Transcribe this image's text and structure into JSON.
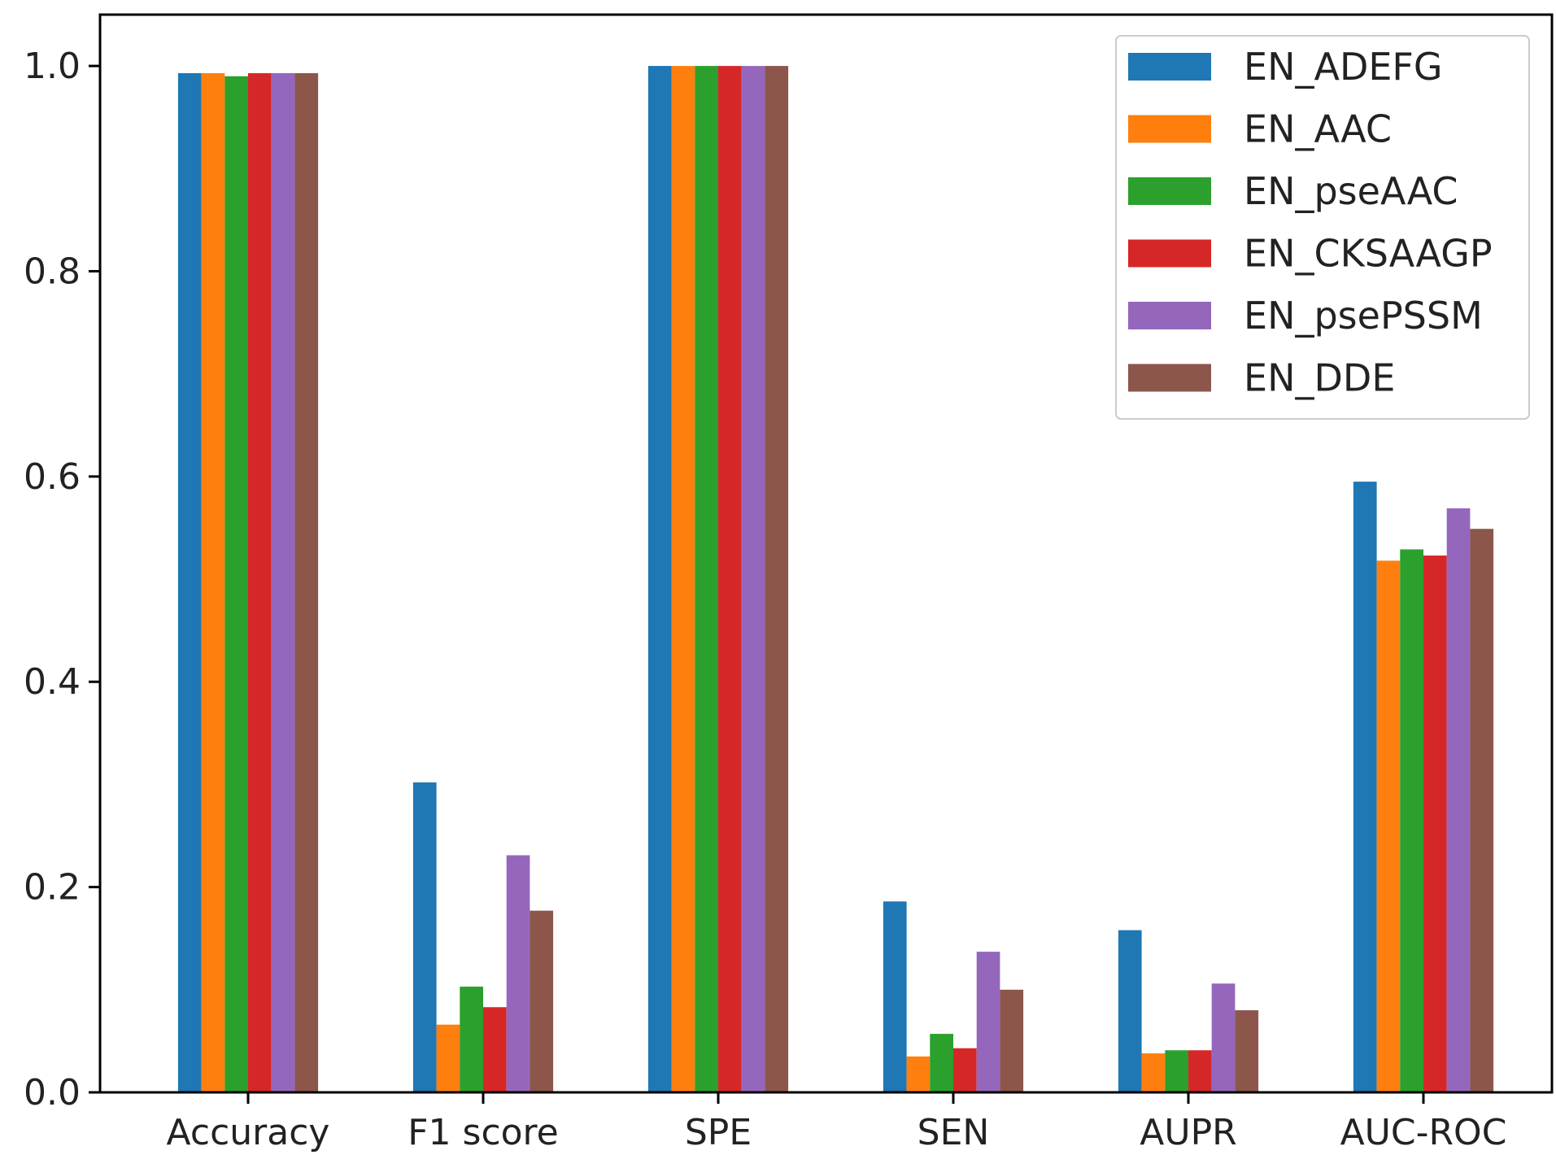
{
  "chart_data": {
    "type": "bar",
    "title": "",
    "xlabel": "",
    "ylabel": "",
    "ylim": [
      0.0,
      1.05
    ],
    "yticks": [
      0.0,
      0.2,
      0.4,
      0.6,
      0.8,
      1.0
    ],
    "ytick_labels": [
      "0.0",
      "0.2",
      "0.4",
      "0.6",
      "0.8",
      "1.0"
    ],
    "grid": false,
    "legend_position": "top-right",
    "categories": [
      "Accuracy",
      "F1 score",
      "SPE",
      "SEN",
      "AUPR",
      "AUC-ROC"
    ],
    "series": [
      {
        "name": "EN_ADEFG",
        "color": "#1f77b4",
        "values": [
          0.993,
          0.302,
          1.0,
          0.186,
          0.158,
          0.595
        ]
      },
      {
        "name": "EN_AAC",
        "color": "#ff7f0e",
        "values": [
          0.993,
          0.066,
          1.0,
          0.035,
          0.038,
          0.518
        ]
      },
      {
        "name": "EN_pseAAC",
        "color": "#2ca02c",
        "values": [
          0.99,
          0.103,
          1.0,
          0.057,
          0.041,
          0.529
        ]
      },
      {
        "name": "EN_CKSAAGP",
        "color": "#d62728",
        "values": [
          0.993,
          0.083,
          1.0,
          0.043,
          0.041,
          0.523
        ]
      },
      {
        "name": "EN_psePSSM",
        "color": "#9467bd",
        "values": [
          0.993,
          0.231,
          1.0,
          0.137,
          0.106,
          0.569
        ]
      },
      {
        "name": "EN_DDE",
        "color": "#8c564b",
        "values": [
          0.993,
          0.177,
          1.0,
          0.1,
          0.08,
          0.549
        ]
      }
    ]
  }
}
